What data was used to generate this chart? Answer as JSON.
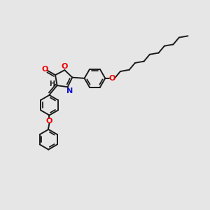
{
  "background_color": "#e6e6e6",
  "bond_color": "#1a1a1a",
  "oxygen_color": "#ee0000",
  "nitrogen_color": "#1111cc",
  "bond_width": 1.4,
  "figsize": [
    3.0,
    3.0
  ],
  "dpi": 100,
  "xlim": [
    0,
    12
  ],
  "ylim": [
    0,
    12
  ]
}
